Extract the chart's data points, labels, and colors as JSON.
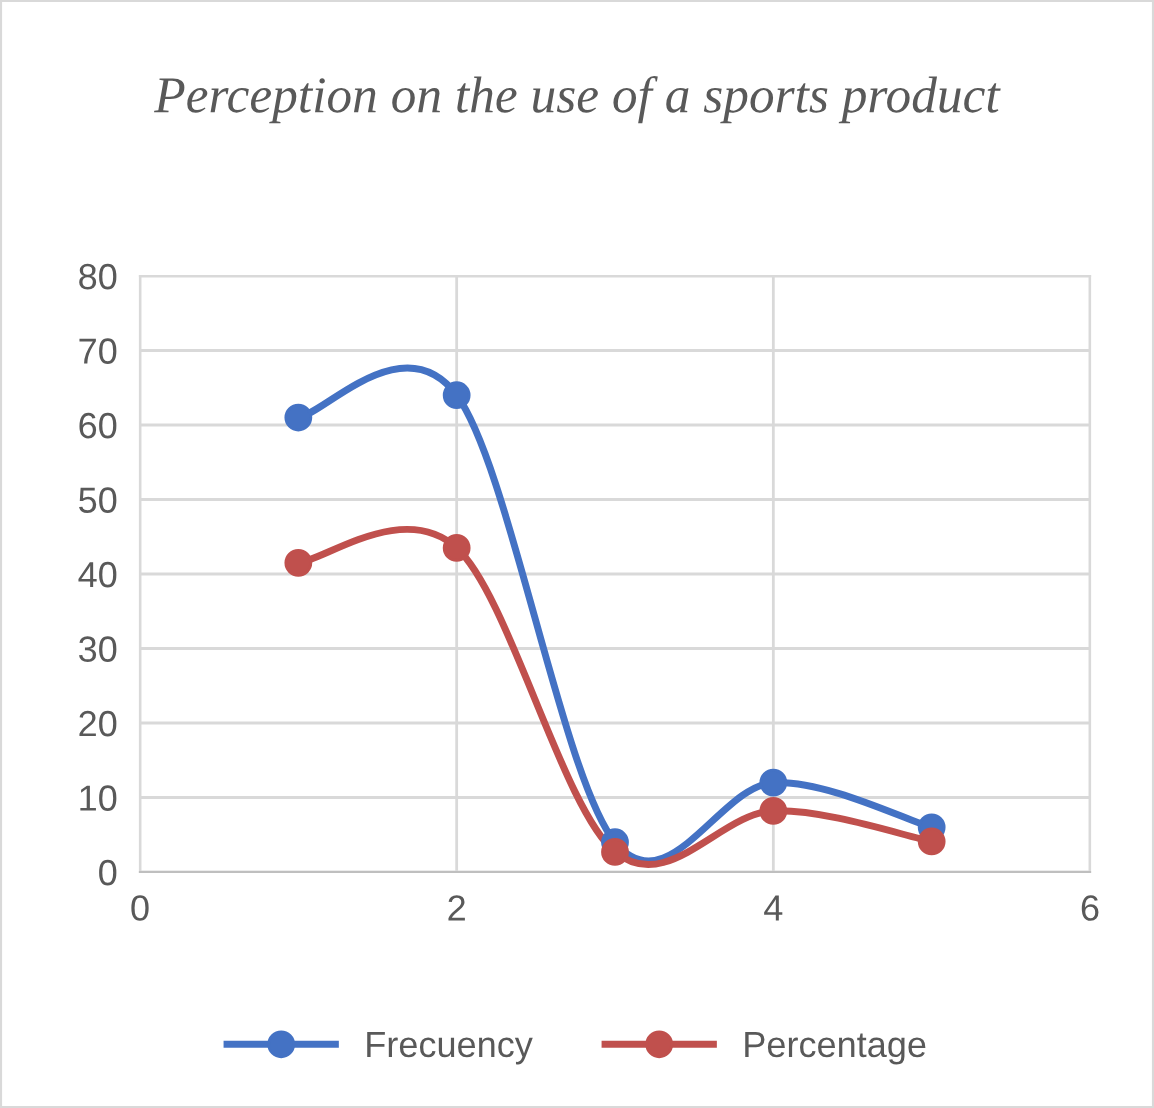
{
  "chart_data": {
    "type": "line",
    "title": "Perception on the use of a sports product",
    "x": [
      1,
      2,
      3,
      4,
      5
    ],
    "series": [
      {
        "name": "Frecuency",
        "color": "#4472c4",
        "values": [
          61,
          64,
          4,
          12,
          6
        ]
      },
      {
        "name": "Percentage",
        "color": "#c0504d",
        "values": [
          41.5,
          43.5,
          2.7,
          8.2,
          4.1
        ]
      }
    ],
    "xlim": [
      0,
      6
    ],
    "xticks": [
      0,
      2,
      4,
      6
    ],
    "ylim": [
      0,
      80
    ],
    "yticks": [
      0,
      10,
      20,
      30,
      40,
      50,
      60,
      70,
      80
    ],
    "grid": true,
    "legend": "bottom",
    "marker": "circle",
    "line_style": "solid"
  }
}
